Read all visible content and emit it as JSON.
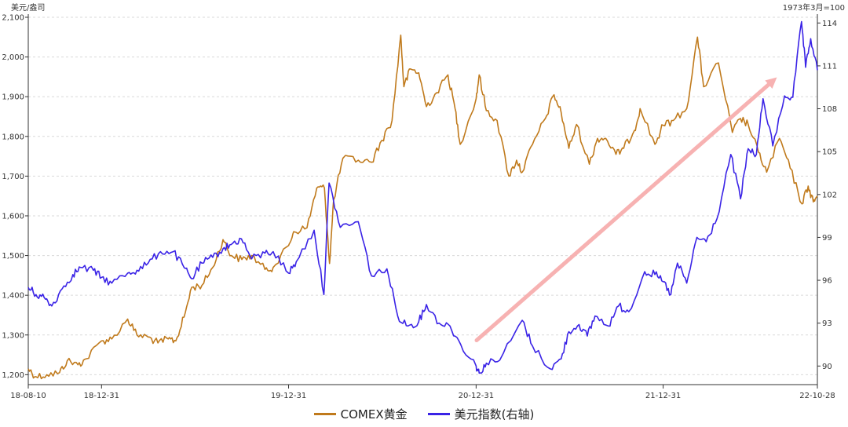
{
  "chart_data": {
    "type": "line",
    "title": "",
    "y_left_unit": "美元/盎司",
    "y_right_unit": "1973年3月=100",
    "x_ticks": [
      "18-08-10",
      "18-12-31",
      "19-12-31",
      "20-12-31",
      "21-12-31",
      "22-10-28"
    ],
    "x_range": [
      "2018-08-10",
      "2022-10-28"
    ],
    "y_left_ticks": [
      "1,200",
      "1,300",
      "1,400",
      "1,500",
      "1,600",
      "1,700",
      "1,800",
      "1,900",
      "2,000",
      "2,100"
    ],
    "y_left_range": [
      1175,
      2100
    ],
    "y_right_ticks": [
      "90",
      "93",
      "96",
      "99",
      "102",
      "105",
      "108",
      "111",
      "114"
    ],
    "y_right_range": [
      88.7,
      114.4
    ],
    "grid": "horizontal dashed",
    "legend_position": "bottom-center",
    "series": [
      {
        "name": "COMEX黄金",
        "axis": "left",
        "color": "#c07a1c",
        "points": [
          [
            "2018-08-10",
            1215
          ],
          [
            "2018-08-25",
            1195
          ],
          [
            "2018-09-15",
            1200
          ],
          [
            "2018-10-10",
            1205
          ],
          [
            "2018-10-25",
            1235
          ],
          [
            "2018-11-15",
            1225
          ],
          [
            "2018-12-01",
            1240
          ],
          [
            "2018-12-31",
            1285
          ],
          [
            "2019-01-20",
            1290
          ],
          [
            "2019-02-20",
            1340
          ],
          [
            "2019-03-10",
            1300
          ],
          [
            "2019-04-01",
            1295
          ],
          [
            "2019-04-20",
            1280
          ],
          [
            "2019-05-10",
            1290
          ],
          [
            "2019-05-25",
            1285
          ],
          [
            "2019-06-10",
            1345
          ],
          [
            "2019-06-25",
            1420
          ],
          [
            "2019-07-15",
            1425
          ],
          [
            "2019-08-05",
            1470
          ],
          [
            "2019-08-25",
            1540
          ],
          [
            "2019-09-10",
            1500
          ],
          [
            "2019-10-01",
            1490
          ],
          [
            "2019-10-20",
            1500
          ],
          [
            "2019-11-15",
            1465
          ],
          [
            "2019-12-01",
            1470
          ],
          [
            "2019-12-31",
            1525
          ],
          [
            "2020-01-10",
            1560
          ],
          [
            "2020-02-05",
            1570
          ],
          [
            "2020-02-24",
            1670
          ],
          [
            "2020-03-10",
            1670
          ],
          [
            "2020-03-20",
            1480
          ],
          [
            "2020-03-28",
            1640
          ],
          [
            "2020-04-15",
            1745
          ],
          [
            "2020-05-15",
            1740
          ],
          [
            "2020-06-10",
            1735
          ],
          [
            "2020-06-30",
            1790
          ],
          [
            "2020-07-20",
            1840
          ],
          [
            "2020-08-06",
            2055
          ],
          [
            "2020-08-12",
            1925
          ],
          [
            "2020-08-25",
            1970
          ],
          [
            "2020-09-10",
            1960
          ],
          [
            "2020-09-25",
            1875
          ],
          [
            "2020-10-15",
            1910
          ],
          [
            "2020-11-06",
            1955
          ],
          [
            "2020-11-20",
            1870
          ],
          [
            "2020-11-30",
            1780
          ],
          [
            "2020-12-31",
            1895
          ],
          [
            "2021-01-06",
            1955
          ],
          [
            "2021-01-20",
            1865
          ],
          [
            "2021-02-10",
            1840
          ],
          [
            "2021-03-05",
            1700
          ],
          [
            "2021-03-20",
            1740
          ],
          [
            "2021-03-31",
            1710
          ],
          [
            "2021-04-20",
            1780
          ],
          [
            "2021-05-15",
            1845
          ],
          [
            "2021-06-01",
            1905
          ],
          [
            "2021-06-15",
            1860
          ],
          [
            "2021-06-30",
            1770
          ],
          [
            "2021-07-15",
            1830
          ],
          [
            "2021-08-09",
            1730
          ],
          [
            "2021-08-25",
            1795
          ],
          [
            "2021-09-10",
            1795
          ],
          [
            "2021-09-30",
            1755
          ],
          [
            "2021-10-15",
            1770
          ],
          [
            "2021-11-05",
            1815
          ],
          [
            "2021-11-16",
            1870
          ],
          [
            "2021-12-15",
            1780
          ],
          [
            "2021-12-31",
            1828
          ],
          [
            "2022-01-20",
            1840
          ],
          [
            "2022-02-15",
            1870
          ],
          [
            "2022-03-08",
            2050
          ],
          [
            "2022-03-20",
            1925
          ],
          [
            "2022-04-18",
            1985
          ],
          [
            "2022-05-15",
            1810
          ],
          [
            "2022-05-31",
            1845
          ],
          [
            "2022-06-15",
            1830
          ],
          [
            "2022-07-05",
            1760
          ],
          [
            "2022-07-21",
            1710
          ],
          [
            "2022-08-15",
            1795
          ],
          [
            "2022-09-05",
            1720
          ],
          [
            "2022-09-28",
            1630
          ],
          [
            "2022-10-10",
            1675
          ],
          [
            "2022-10-20",
            1635
          ],
          [
            "2022-10-28",
            1650
          ]
        ]
      },
      {
        "name": "美元指数(右轴)",
        "axis": "right",
        "color": "#3a23e6",
        "points": [
          [
            "2018-08-10",
            95.5
          ],
          [
            "2018-08-25",
            95.0
          ],
          [
            "2018-09-10",
            94.8
          ],
          [
            "2018-09-25",
            94.2
          ],
          [
            "2018-10-15",
            95.4
          ],
          [
            "2018-11-05",
            96.4
          ],
          [
            "2018-11-20",
            96.9
          ],
          [
            "2018-12-15",
            96.7
          ],
          [
            "2018-12-31",
            96.2
          ],
          [
            "2019-01-20",
            95.8
          ],
          [
            "2019-02-20",
            96.5
          ],
          [
            "2019-03-10",
            96.7
          ],
          [
            "2019-04-01",
            97.2
          ],
          [
            "2019-04-25",
            98.0
          ],
          [
            "2019-05-20",
            98.0
          ],
          [
            "2019-06-10",
            96.9
          ],
          [
            "2019-06-25",
            96.1
          ],
          [
            "2019-07-15",
            97.2
          ],
          [
            "2019-08-05",
            97.6
          ],
          [
            "2019-08-25",
            98.2
          ],
          [
            "2019-09-10",
            98.5
          ],
          [
            "2019-09-30",
            98.9
          ],
          [
            "2019-10-20",
            97.5
          ],
          [
            "2019-11-15",
            97.9
          ],
          [
            "2019-12-01",
            98.0
          ],
          [
            "2019-12-31",
            96.5
          ],
          [
            "2020-01-15",
            97.3
          ],
          [
            "2020-02-19",
            99.5
          ],
          [
            "2020-03-09",
            95.0
          ],
          [
            "2020-03-19",
            102.8
          ],
          [
            "2020-04-10",
            99.7
          ],
          [
            "2020-05-15",
            100.1
          ],
          [
            "2020-06-10",
            96.3
          ],
          [
            "2020-07-10",
            96.8
          ],
          [
            "2020-07-31",
            93.5
          ],
          [
            "2020-08-20",
            92.8
          ],
          [
            "2020-09-10",
            93.1
          ],
          [
            "2020-09-25",
            94.3
          ],
          [
            "2020-10-20",
            93.0
          ],
          [
            "2020-11-10",
            92.8
          ],
          [
            "2020-12-01",
            91.5
          ],
          [
            "2020-12-31",
            90.0
          ],
          [
            "2021-01-06",
            89.5
          ],
          [
            "2021-01-20",
            90.2
          ],
          [
            "2021-02-15",
            90.4
          ],
          [
            "2021-03-31",
            93.2
          ],
          [
            "2021-04-20",
            91.4
          ],
          [
            "2021-05-25",
            89.8
          ],
          [
            "2021-06-15",
            90.5
          ],
          [
            "2021-06-30",
            92.4
          ],
          [
            "2021-07-20",
            92.9
          ],
          [
            "2021-08-05",
            92.1
          ],
          [
            "2021-08-20",
            93.5
          ],
          [
            "2021-09-15",
            92.8
          ],
          [
            "2021-10-05",
            94.2
          ],
          [
            "2021-10-25",
            93.8
          ],
          [
            "2021-11-25",
            96.6
          ],
          [
            "2021-12-15",
            96.4
          ],
          [
            "2021-12-31",
            95.9
          ],
          [
            "2022-01-15",
            95.0
          ],
          [
            "2022-01-28",
            97.2
          ],
          [
            "2022-02-15",
            95.8
          ],
          [
            "2022-03-07",
            99.0
          ],
          [
            "2022-03-25",
            98.7
          ],
          [
            "2022-04-15",
            100.3
          ],
          [
            "2022-05-12",
            104.8
          ],
          [
            "2022-05-31",
            101.7
          ],
          [
            "2022-06-15",
            105.2
          ],
          [
            "2022-07-01",
            104.8
          ],
          [
            "2022-07-14",
            108.7
          ],
          [
            "2022-08-02",
            105.4
          ],
          [
            "2022-08-25",
            108.9
          ],
          [
            "2022-09-10",
            108.8
          ],
          [
            "2022-09-27",
            114.1
          ],
          [
            "2022-10-05",
            110.9
          ],
          [
            "2022-10-15",
            112.9
          ],
          [
            "2022-10-28",
            110.7
          ]
        ]
      }
    ],
    "annotation": {
      "type": "arrow",
      "from": [
        "2021-01-01",
        91.8
      ],
      "to": [
        "2022-08-10",
        110.2
      ],
      "color": "#f7b2b2"
    }
  },
  "legend": {
    "gold_label": "COMEX黄金",
    "usd_label": "美元指数(右轴)"
  }
}
